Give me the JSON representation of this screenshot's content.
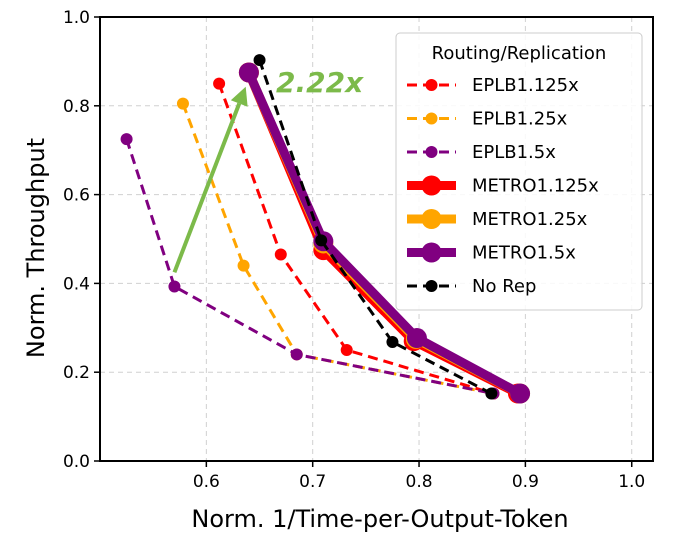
{
  "chart_data": {
    "type": "line",
    "xlabel": "Norm. 1/Time-per-Output-Token",
    "ylabel": "Norm. Throughput",
    "xlim": [
      0.5,
      1.02
    ],
    "ylim": [
      0.0,
      1.0
    ],
    "xticks": [
      0.6,
      0.7,
      0.8,
      0.9,
      1.0
    ],
    "yticks": [
      0.0,
      0.2,
      0.4,
      0.6,
      0.8,
      1.0
    ],
    "xtick_labels": [
      "0.6",
      "0.7",
      "0.8",
      "0.9",
      "1.0"
    ],
    "ytick_labels": [
      "0.0",
      "0.2",
      "0.4",
      "0.6",
      "0.8",
      "1.0"
    ],
    "grid": true,
    "legend": {
      "title": "Routing/Replication",
      "placement": "top-right"
    },
    "series": [
      {
        "name": "EPLB1.125x",
        "color": "#ff0000",
        "style": "dashed",
        "marker": "small",
        "x": [
          0.612,
          0.67,
          0.732,
          0.87
        ],
        "y": [
          0.85,
          0.465,
          0.25,
          0.152
        ]
      },
      {
        "name": "EPLB1.25x",
        "color": "#ffa500",
        "style": "dashed",
        "marker": "small",
        "x": [
          0.578,
          0.635,
          0.685,
          0.87
        ],
        "y": [
          0.805,
          0.44,
          0.24,
          0.152
        ]
      },
      {
        "name": "EPLB1.5x",
        "color": "#800080",
        "style": "dashed",
        "marker": "small",
        "x": [
          0.525,
          0.57,
          0.685,
          0.87
        ],
        "y": [
          0.725,
          0.393,
          0.24,
          0.152
        ]
      },
      {
        "name": "METRO1.125x",
        "color": "#ff0000",
        "style": "solid",
        "marker": "large",
        "x": [
          0.64,
          0.71,
          0.795,
          0.893
        ],
        "y": [
          0.875,
          0.475,
          0.27,
          0.152
        ]
      },
      {
        "name": "METRO1.25x",
        "color": "#ffa500",
        "style": "solid",
        "marker": "large",
        "x": [
          0.64,
          0.71,
          0.797,
          0.895
        ],
        "y": [
          0.875,
          0.49,
          0.275,
          0.152
        ]
      },
      {
        "name": "METRO1.5x",
        "color": "#800080",
        "style": "solid",
        "marker": "large",
        "x": [
          0.64,
          0.71,
          0.798,
          0.895
        ],
        "y": [
          0.875,
          0.495,
          0.277,
          0.152
        ]
      },
      {
        "name": "No Rep",
        "color": "#000000",
        "style": "dashed",
        "marker": "small",
        "x": [
          0.65,
          0.708,
          0.775,
          0.868
        ],
        "y": [
          0.903,
          0.497,
          0.268,
          0.152
        ]
      }
    ],
    "annotations": [
      {
        "text": "2.22x",
        "color": "#7cba4a",
        "arrow_from": [
          0.57,
          0.425
        ],
        "arrow_to": [
          0.637,
          0.843
        ]
      }
    ]
  }
}
